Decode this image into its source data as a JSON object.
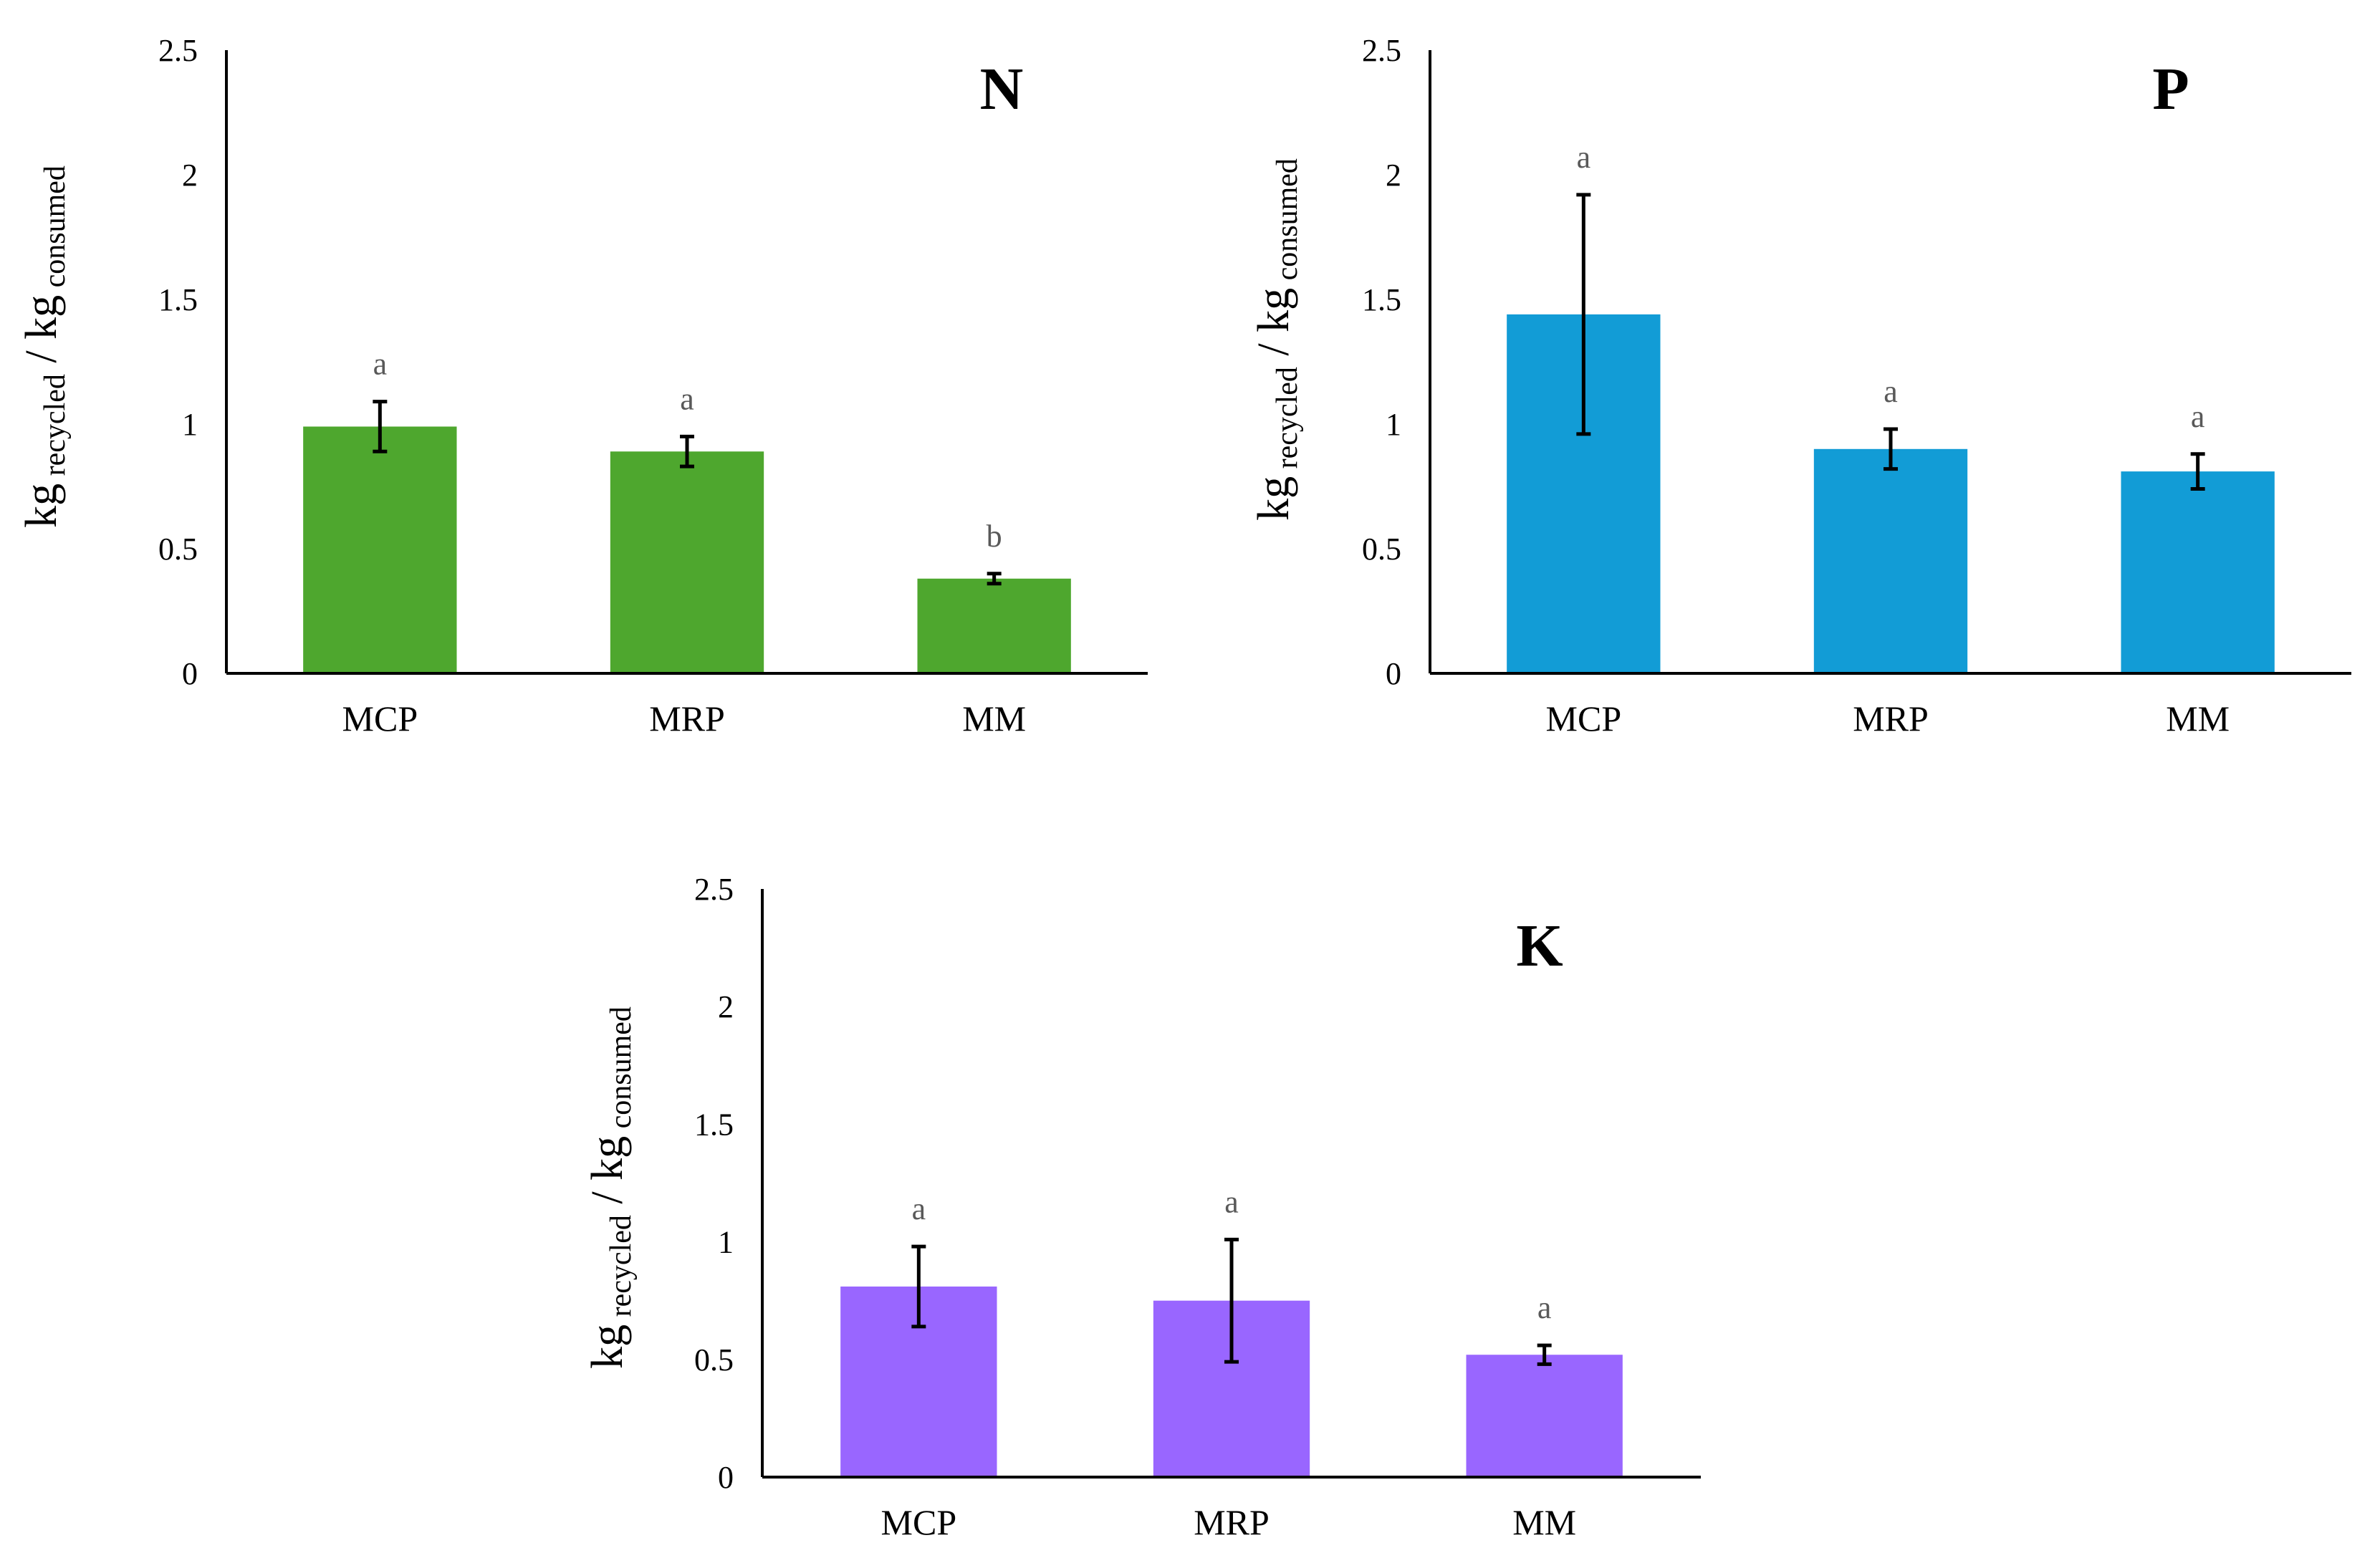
{
  "chart_data": [
    {
      "type": "bar",
      "title": "N",
      "ylabel": {
        "base1": "kg",
        "sub1": "recycled",
        "sep": "/",
        "base2": "kg",
        "sub2": "consumed"
      },
      "categories": [
        "MCP",
        "MRP",
        "MM"
      ],
      "values": [
        0.99,
        0.89,
        0.38
      ],
      "errors": [
        0.1,
        0.06,
        0.02
      ],
      "letters": [
        "a",
        "a",
        "b"
      ],
      "color": "#4EA72E",
      "ylim": [
        0,
        2.5
      ],
      "yticks": [
        "0",
        "0.5",
        "1",
        "1.5",
        "2",
        "2.5"
      ],
      "grid": false,
      "legend": "none"
    },
    {
      "type": "bar",
      "title": "P",
      "ylabel": {
        "base1": "kg",
        "sub1": "recycled",
        "sep": "/",
        "base2": "kg",
        "sub2": "consumed"
      },
      "categories": [
        "MCP",
        "MRP",
        "MM"
      ],
      "values": [
        1.44,
        0.9,
        0.81
      ],
      "errors": [
        0.48,
        0.08,
        0.07
      ],
      "letters": [
        "a",
        "a",
        "a"
      ],
      "color": "#129CD6",
      "ylim": [
        0,
        2.5
      ],
      "yticks": [
        "0",
        "0.5",
        "1",
        "1.5",
        "2",
        "2.5"
      ],
      "grid": false,
      "legend": "none"
    },
    {
      "type": "bar",
      "title": "K",
      "ylabel": {
        "base1": "kg",
        "sub1": "recycled",
        "sep": "/",
        "base2": "kg",
        "sub2": "consumed"
      },
      "categories": [
        "MCP",
        "MRP",
        "MM"
      ],
      "values": [
        0.81,
        0.75,
        0.52
      ],
      "errors": [
        0.17,
        0.26,
        0.04
      ],
      "letters": [
        "a",
        "a",
        "a"
      ],
      "color": "#9966FF",
      "ylim": [
        0,
        2.5
      ],
      "yticks": [
        "0",
        "0.5",
        "1",
        "1.5",
        "2",
        "2.5"
      ],
      "grid": false,
      "legend": "none"
    }
  ]
}
